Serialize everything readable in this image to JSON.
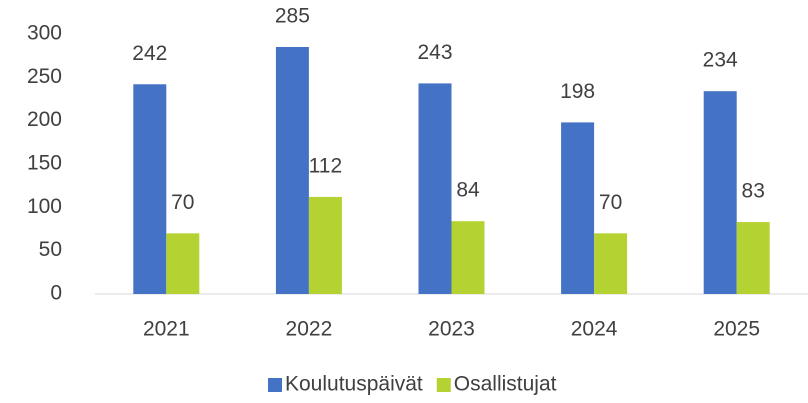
{
  "chart_data": {
    "type": "bar",
    "categories": [
      "2021",
      "2022",
      "2023",
      "2024",
      "2025"
    ],
    "series": [
      {
        "name": "Koulutuspäivät",
        "color": "#4472c4",
        "values": [
          242,
          285,
          243,
          198,
          234
        ]
      },
      {
        "name": "Osallistujat",
        "color": "#b5d233",
        "values": [
          70,
          112,
          84,
          70,
          83
        ]
      }
    ],
    "ylim": [
      0,
      300
    ],
    "yticks": [
      0,
      50,
      100,
      150,
      200,
      250,
      300
    ],
    "grid": false,
    "legend": "bottom"
  }
}
